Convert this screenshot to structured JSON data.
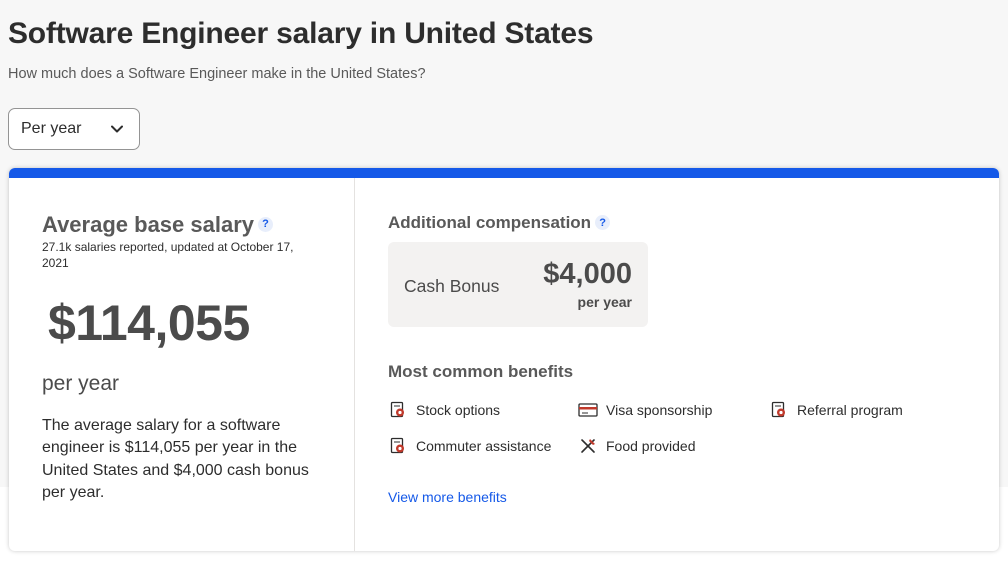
{
  "header": {
    "title": "Software Engineer salary in United States",
    "subtitle": "How much does a Software Engineer make in the United States?"
  },
  "period_select": {
    "value": "Per year"
  },
  "base_salary": {
    "title": "Average base salary",
    "help": "?",
    "reported": "27.1k salaries reported, updated at October 17, 2021",
    "amount": "$114,055",
    "period": "per year",
    "description": "The average salary for a software engineer is $114,055 per year in the United States and $4,000 cash bonus per year."
  },
  "additional": {
    "title": "Additional compensation",
    "help": "?",
    "bonus_label": "Cash Bonus",
    "bonus_amount": "$4,000",
    "bonus_period": "per year"
  },
  "benefits": {
    "title": "Most common benefits",
    "items": [
      {
        "label": "Stock options",
        "icon": "stock-options-icon"
      },
      {
        "label": "Visa sponsorship",
        "icon": "visa-card-icon"
      },
      {
        "label": "Referral program",
        "icon": "referral-icon"
      },
      {
        "label": "Commuter assistance",
        "icon": "commuter-icon"
      },
      {
        "label": "Food provided",
        "icon": "food-icon"
      }
    ],
    "view_more": "View more benefits"
  },
  "colors": {
    "accent_blue": "#1559e8",
    "icon_red": "#c0392b",
    "text_dark": "#2d2d2d",
    "text_gray": "#595959"
  }
}
